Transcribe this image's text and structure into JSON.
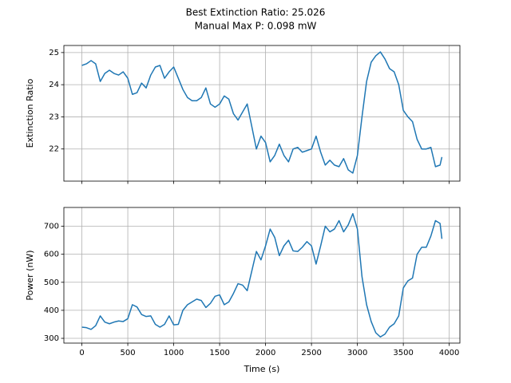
{
  "title": [
    "Best Extinction Ratio: 25.026",
    "Manual Max P: 0.098 mW"
  ],
  "chart_data": [
    {
      "type": "line",
      "y_label": "Extinction Ratio",
      "color": "#1f77b4",
      "grid": true,
      "xlim": [
        -196,
        4116
      ],
      "ylim": [
        21.0,
        25.22
      ],
      "xticks": [
        0,
        500,
        1000,
        1500,
        2000,
        2500,
        3000,
        3500,
        4000
      ],
      "yticks": [
        22,
        23,
        24,
        25
      ],
      "x": [
        0,
        50,
        100,
        150,
        200,
        250,
        300,
        350,
        400,
        450,
        500,
        550,
        600,
        650,
        700,
        750,
        800,
        850,
        900,
        950,
        1000,
        1050,
        1100,
        1150,
        1200,
        1250,
        1300,
        1350,
        1400,
        1450,
        1500,
        1550,
        1600,
        1650,
        1700,
        1750,
        1800,
        1850,
        1900,
        1950,
        2000,
        2050,
        2100,
        2150,
        2200,
        2250,
        2300,
        2350,
        2400,
        2450,
        2500,
        2550,
        2600,
        2650,
        2700,
        2750,
        2800,
        2850,
        2900,
        2950,
        3000,
        3050,
        3100,
        3150,
        3200,
        3250,
        3300,
        3350,
        3400,
        3450,
        3500,
        3550,
        3600,
        3650,
        3700,
        3750,
        3800,
        3850,
        3900,
        3920
      ],
      "values": [
        24.6,
        24.65,
        24.75,
        24.65,
        24.1,
        24.35,
        24.45,
        24.35,
        24.3,
        24.4,
        24.2,
        23.7,
        23.75,
        24.05,
        23.9,
        24.3,
        24.55,
        24.6,
        24.2,
        24.4,
        24.55,
        24.2,
        23.85,
        23.6,
        23.5,
        23.5,
        23.6,
        23.9,
        23.4,
        23.3,
        23.4,
        23.65,
        23.55,
        23.1,
        22.9,
        23.15,
        23.4,
        22.7,
        22.0,
        22.4,
        22.2,
        21.6,
        21.8,
        22.15,
        21.8,
        21.6,
        22.0,
        22.05,
        21.9,
        21.95,
        22.0,
        22.4,
        21.9,
        21.5,
        21.65,
        21.5,
        21.45,
        21.7,
        21.35,
        21.25,
        21.8,
        23.0,
        24.1,
        24.7,
        24.9,
        25.02,
        24.8,
        24.5,
        24.4,
        24.0,
        23.2,
        23.0,
        22.85,
        22.3,
        22.0,
        22.0,
        22.05,
        21.45,
        21.5,
        21.75
      ]
    },
    {
      "type": "line",
      "x_label": "Time (s)",
      "y_label": "Power (nW)",
      "color": "#1f77b4",
      "grid": true,
      "xlim": [
        -196,
        4116
      ],
      "ylim": [
        283,
        767
      ],
      "xticks": [
        0,
        500,
        1000,
        1500,
        2000,
        2500,
        3000,
        3500,
        4000
      ],
      "yticks": [
        300,
        400,
        500,
        600,
        700
      ],
      "x": [
        0,
        50,
        100,
        150,
        200,
        250,
        300,
        350,
        400,
        450,
        500,
        550,
        600,
        650,
        700,
        750,
        800,
        850,
        900,
        950,
        1000,
        1050,
        1100,
        1150,
        1200,
        1250,
        1300,
        1350,
        1400,
        1450,
        1500,
        1550,
        1600,
        1650,
        1700,
        1750,
        1800,
        1850,
        1900,
        1950,
        2000,
        2050,
        2100,
        2150,
        2200,
        2250,
        2300,
        2350,
        2400,
        2450,
        2500,
        2550,
        2600,
        2650,
        2700,
        2750,
        2800,
        2850,
        2900,
        2950,
        3000,
        3050,
        3100,
        3150,
        3200,
        3250,
        3300,
        3350,
        3400,
        3450,
        3500,
        3550,
        3600,
        3650,
        3700,
        3750,
        3800,
        3850,
        3900,
        3920
      ],
      "values": [
        340,
        338,
        332,
        345,
        380,
        358,
        352,
        358,
        362,
        360,
        370,
        420,
        412,
        385,
        378,
        380,
        350,
        340,
        350,
        380,
        348,
        350,
        400,
        420,
        430,
        440,
        435,
        410,
        425,
        450,
        455,
        420,
        430,
        460,
        495,
        490,
        470,
        540,
        610,
        580,
        630,
        690,
        660,
        595,
        630,
        650,
        612,
        610,
        625,
        645,
        630,
        565,
        630,
        700,
        680,
        690,
        720,
        680,
        705,
        745,
        690,
        520,
        420,
        360,
        320,
        305,
        315,
        340,
        352,
        380,
        480,
        505,
        515,
        600,
        625,
        625,
        665,
        720,
        710,
        655
      ]
    }
  ]
}
